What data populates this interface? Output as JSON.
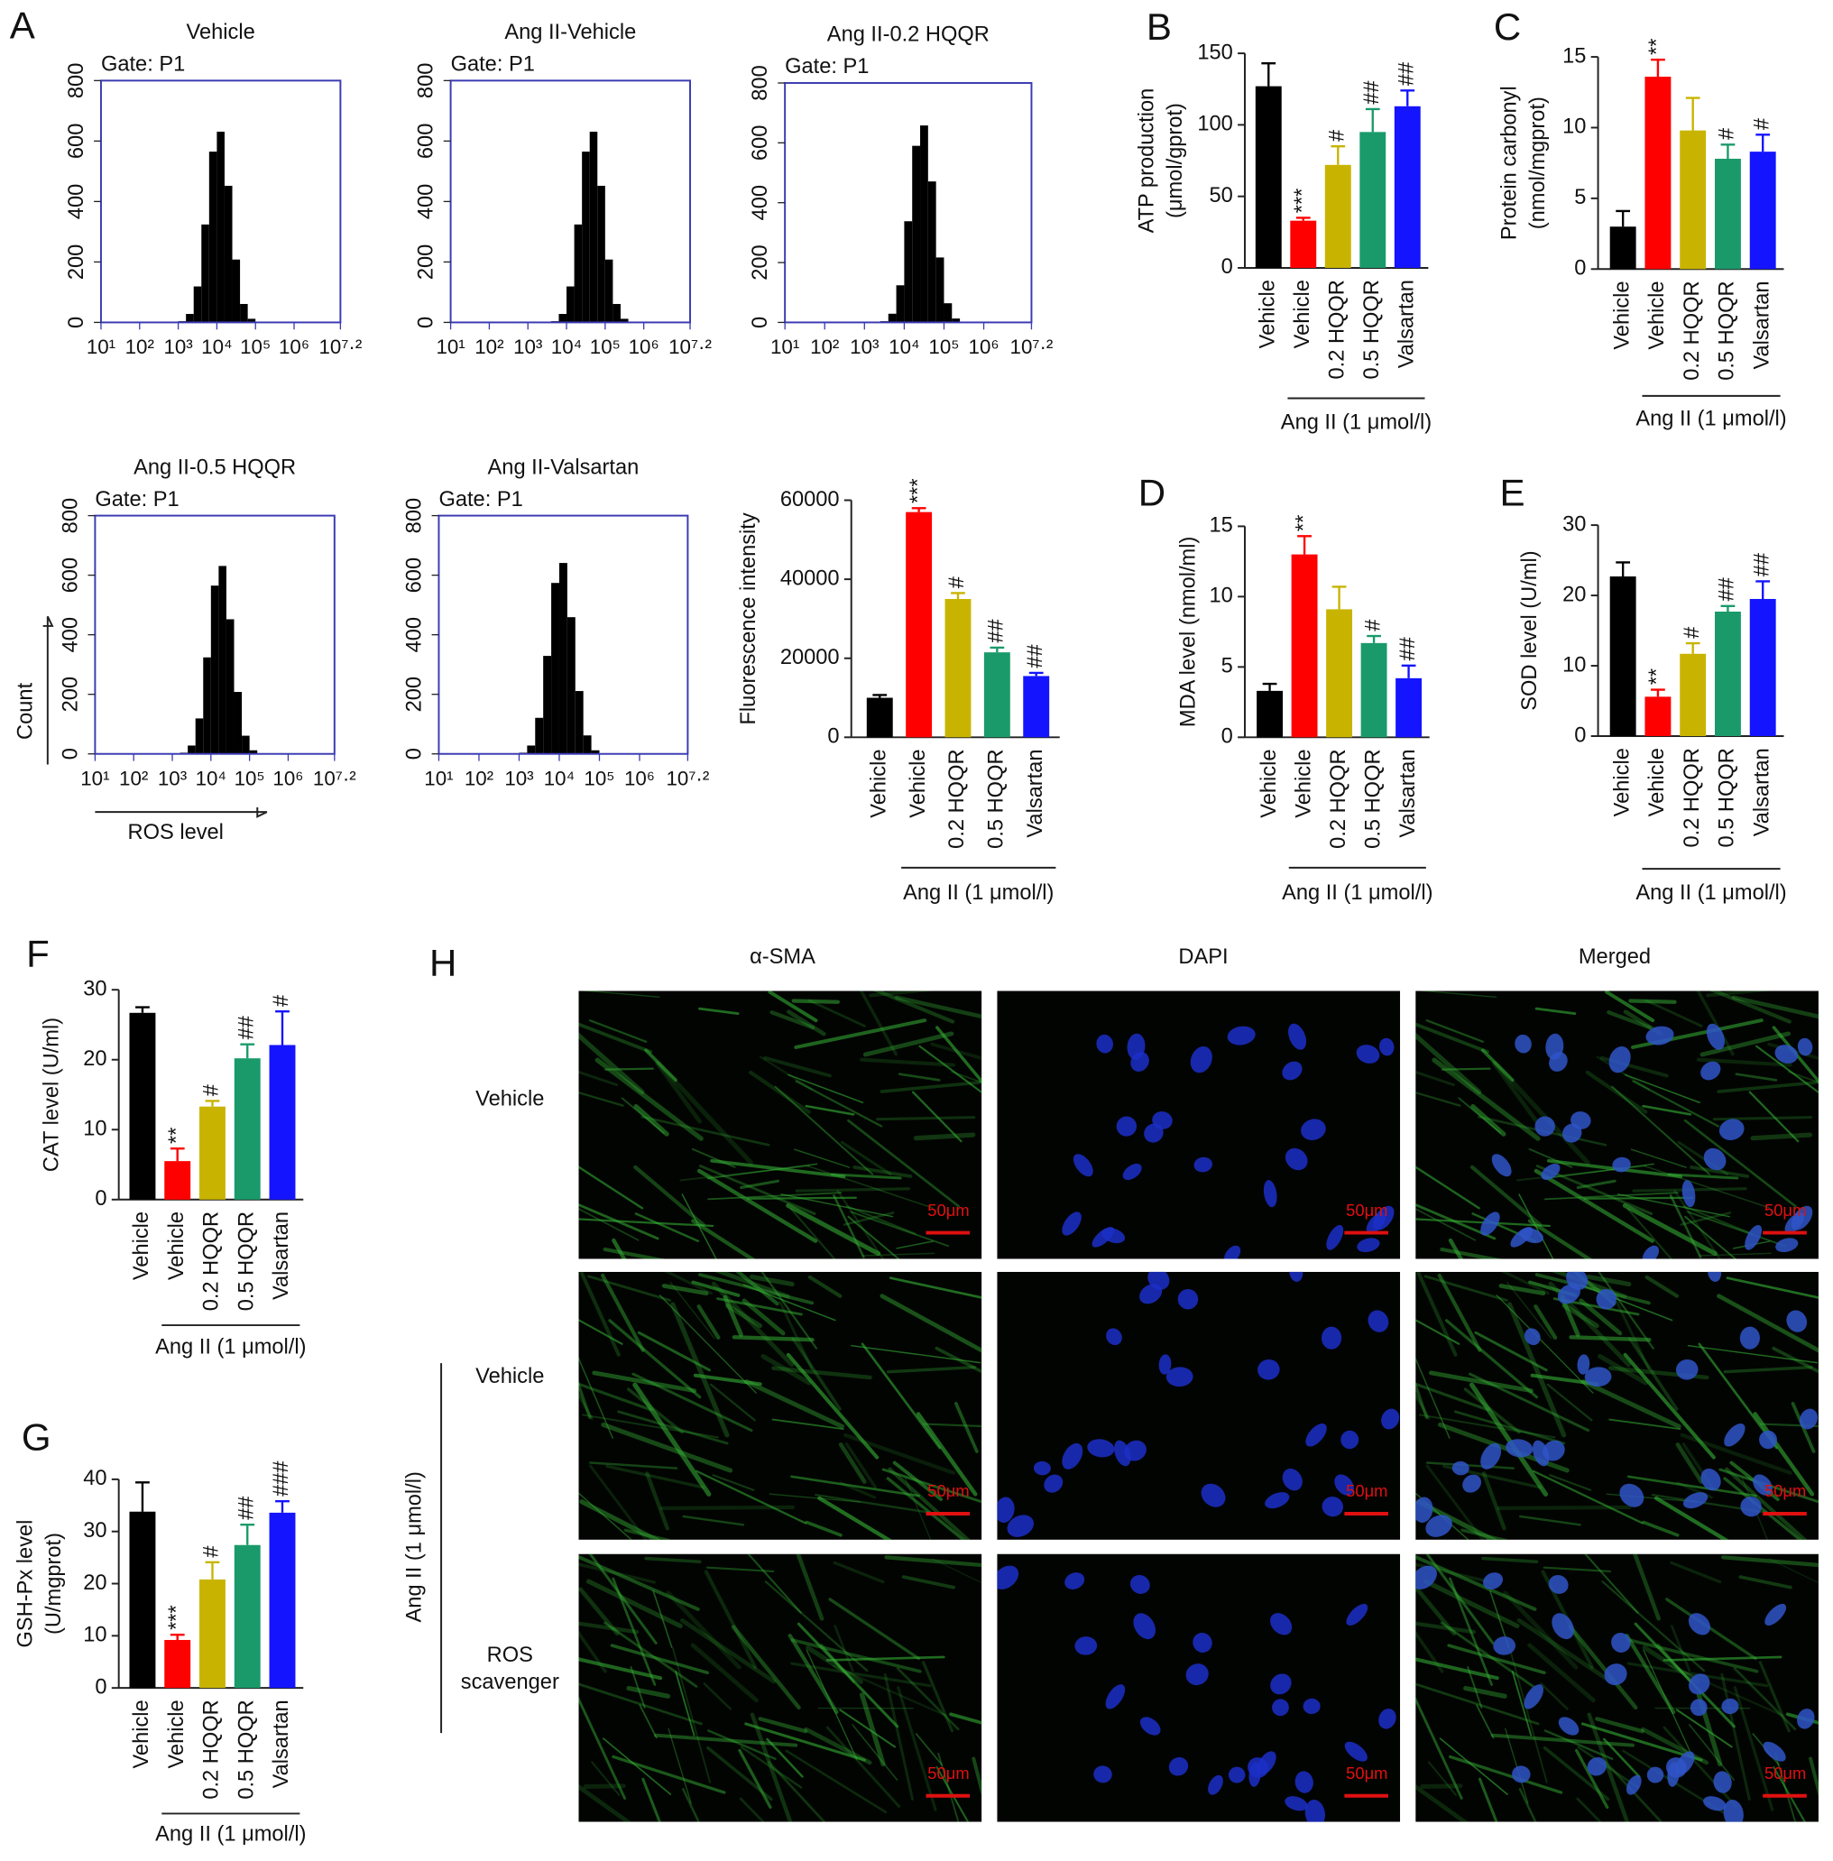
{
  "chart_data": [
    {
      "type": "histogram",
      "panel": "A",
      "title": "Vehicle",
      "gate": "Gate: P1",
      "color": "#000000",
      "frame_color": "#3b3bb3",
      "xscale": "log",
      "bins": [
        251,
        398,
        631,
        1000,
        1585,
        2512,
        3981,
        6310,
        10000,
        15849,
        25119,
        39811,
        63096,
        100000,
        158489,
        251189,
        398107,
        630957,
        1000000,
        1584893,
        2511886
      ],
      "values": [
        0,
        0,
        0,
        4,
        28,
        119,
        324,
        565,
        631,
        452,
        208,
        61,
        12,
        1,
        0,
        0,
        0,
        0,
        0,
        0
      ],
      "xlim": [
        10,
        15848932
      ],
      "xticks": [
        {
          "value": 10,
          "label": "10¹"
        },
        {
          "value": 100,
          "label": "10²"
        },
        {
          "value": 1000,
          "label": "10³"
        },
        {
          "value": 10000,
          "label": "10⁴"
        },
        {
          "value": 100000,
          "label": "10⁵"
        },
        {
          "value": 1000000,
          "label": "10⁶"
        },
        {
          "value": 15848932,
          "label": "10⁷·²"
        }
      ],
      "ylim": [
        0,
        800
      ],
      "yticks": [
        0,
        200,
        400,
        600,
        800
      ]
    },
    {
      "type": "histogram",
      "title": "Ang II-Vehicle",
      "gate": "Gate: P1",
      "color": "#000000",
      "frame_color": "#3b3bb3",
      "xscale": "log",
      "bins": [
        251,
        398,
        631,
        1000,
        1585,
        2512,
        3981,
        6310,
        10000,
        15849,
        25119,
        39811,
        63096,
        100000,
        158489,
        251189,
        398107,
        630957,
        1000000,
        1584893,
        2511886
      ],
      "values": [
        0,
        0,
        0,
        0,
        0,
        0,
        4,
        28,
        119,
        324,
        565,
        631,
        452,
        208,
        61,
        12,
        1,
        0,
        0,
        0
      ],
      "xlim": [
        10,
        15848932
      ],
      "xticks": [
        {
          "value": 10,
          "label": "10¹"
        },
        {
          "value": 100,
          "label": "10²"
        },
        {
          "value": 1000,
          "label": "10³"
        },
        {
          "value": 10000,
          "label": "10⁴"
        },
        {
          "value": 100000,
          "label": "10⁵"
        },
        {
          "value": 1000000,
          "label": "10⁶"
        },
        {
          "value": 15848932,
          "label": "10⁷·²"
        }
      ],
      "ylim": [
        0,
        800
      ],
      "yticks": [
        0,
        200,
        400,
        600,
        800
      ]
    },
    {
      "type": "histogram",
      "title": "Ang II-0.2 HQQR",
      "gate": "Gate: P1",
      "color": "#000000",
      "frame_color": "#3b3bb3",
      "xscale": "log",
      "bins": [
        251,
        398,
        631,
        1000,
        1585,
        2512,
        3981,
        6310,
        10000,
        15849,
        25119,
        39811,
        63096,
        100000,
        158489,
        251189,
        398107,
        630957,
        1000000,
        1584893,
        2511886
      ],
      "values": [
        0,
        0,
        0,
        0,
        0,
        4,
        29,
        124,
        338,
        590,
        658,
        471,
        217,
        64,
        13,
        1,
        0,
        0,
        0,
        0
      ],
      "xlim": [
        10,
        15848932
      ],
      "xticks": [
        {
          "value": 10,
          "label": "10¹"
        },
        {
          "value": 100,
          "label": "10²"
        },
        {
          "value": 1000,
          "label": "10³"
        },
        {
          "value": 10000,
          "label": "10⁴"
        },
        {
          "value": 100000,
          "label": "10⁵"
        },
        {
          "value": 1000000,
          "label": "10⁶"
        },
        {
          "value": 15848932,
          "label": "10⁷·²"
        }
      ],
      "ylim": [
        0,
        800
      ],
      "yticks": [
        0,
        200,
        400,
        600,
        800
      ]
    },
    {
      "type": "histogram",
      "title": "Ang II-0.5 HQQR",
      "gate": "Gate: P1",
      "color": "#000000",
      "frame_color": "#3b3bb3",
      "xscale": "log",
      "xlabel": "ROS level",
      "ylabel": "Count",
      "bins": [
        251,
        398,
        631,
        1000,
        1585,
        2512,
        3981,
        6310,
        10000,
        15849,
        25119,
        39811,
        63096,
        100000,
        158489,
        251189,
        398107,
        630957,
        1000000,
        1584893,
        2511886
      ],
      "values": [
        0,
        0,
        0,
        0,
        4,
        28,
        119,
        324,
        565,
        631,
        452,
        208,
        61,
        12,
        1,
        0,
        0,
        0,
        0,
        0
      ],
      "xlim": [
        10,
        15848932
      ],
      "xticks": [
        {
          "value": 10,
          "label": "10¹"
        },
        {
          "value": 100,
          "label": "10²"
        },
        {
          "value": 1000,
          "label": "10³"
        },
        {
          "value": 10000,
          "label": "10⁴"
        },
        {
          "value": 100000,
          "label": "10⁵"
        },
        {
          "value": 1000000,
          "label": "10⁶"
        },
        {
          "value": 15848932,
          "label": "10⁷·²"
        }
      ],
      "ylim": [
        0,
        800
      ],
      "yticks": [
        0,
        200,
        400,
        600,
        800
      ]
    },
    {
      "type": "histogram",
      "title": "Ang II-Valsartan",
      "gate": "Gate: P1",
      "color": "#000000",
      "frame_color": "#3b3bb3",
      "xscale": "log",
      "bins": [
        251,
        398,
        631,
        1000,
        1585,
        2512,
        3981,
        6310,
        10000,
        15849,
        25119,
        39811,
        63096,
        100000,
        158489,
        251189,
        398107,
        630957,
        1000000,
        1584893,
        2511886
      ],
      "values": [
        0,
        0,
        0,
        4,
        28,
        121,
        329,
        574,
        641,
        459,
        211,
        62,
        12,
        1,
        0,
        0,
        0,
        0,
        0,
        0
      ],
      "xlim": [
        10,
        15848932
      ],
      "xticks": [
        {
          "value": 10,
          "label": "10¹"
        },
        {
          "value": 100,
          "label": "10²"
        },
        {
          "value": 1000,
          "label": "10³"
        },
        {
          "value": 10000,
          "label": "10⁴"
        },
        {
          "value": 100000,
          "label": "10⁵"
        },
        {
          "value": 1000000,
          "label": "10⁶"
        },
        {
          "value": 15848932,
          "label": "10⁷·²"
        }
      ],
      "ylim": [
        0,
        800
      ],
      "yticks": [
        0,
        200,
        400,
        600,
        800
      ]
    },
    {
      "type": "bar",
      "ylabel": "Fluorescence intensity",
      "group_label": "Ang II (1 μmol/l)",
      "categories": [
        "Vehicle",
        "Vehicle",
        "0.2 HQQR",
        "0.5 HQQR",
        "Valsartan"
      ],
      "colors": [
        "#000000",
        "#ff0000",
        "#c8b400",
        "#1a9a6a",
        "#1414ff"
      ],
      "values": [
        10000,
        57000,
        35000,
        21500,
        15500
      ],
      "errors": [
        700,
        1000,
        1500,
        1200,
        800
      ],
      "annotations": [
        null,
        "***",
        "#",
        "##",
        "##"
      ],
      "ylim": [
        0,
        60000
      ],
      "yticks": [
        0,
        20000,
        40000,
        60000
      ]
    },
    {
      "type": "bar",
      "panel": "B",
      "ylabel": [
        "ATP production",
        "(μmol/gprot)"
      ],
      "group_label": "Ang II (1 μmol/l)",
      "categories": [
        "Vehicle",
        "Vehicle",
        "0.2 HQQR",
        "0.5 HQQR",
        "Valsartan"
      ],
      "colors": [
        "#000000",
        "#ff0000",
        "#c8b400",
        "#1a9a6a",
        "#1414ff"
      ],
      "values": [
        127,
        33,
        72,
        95,
        113
      ],
      "errors": [
        16,
        2,
        13,
        16,
        11
      ],
      "annotations": [
        null,
        "***",
        "#",
        "##",
        "##"
      ],
      "ylim": [
        0,
        150
      ],
      "yticks": [
        0,
        50,
        100,
        150
      ]
    },
    {
      "type": "bar",
      "panel": "C",
      "ylabel": [
        "Protein carbonyl",
        "(nmol/mgprot)"
      ],
      "group_label": "Ang II (1 μmol/l)",
      "categories": [
        "Vehicle",
        "Vehicle",
        "0.2 HQQR",
        "0.5 HQQR",
        "Valsartan"
      ],
      "colors": [
        "#000000",
        "#ff0000",
        "#c8b400",
        "#1a9a6a",
        "#1414ff"
      ],
      "values": [
        3,
        13.6,
        9.8,
        7.8,
        8.3
      ],
      "errors": [
        1.1,
        1.2,
        2.3,
        1.0,
        1.2
      ],
      "annotations": [
        null,
        "**",
        null,
        "#",
        "#"
      ],
      "ylim": [
        0,
        15
      ],
      "yticks": [
        0,
        5,
        10,
        15
      ]
    },
    {
      "type": "bar",
      "panel": "D",
      "ylabel": "MDA level (nmol/ml)",
      "group_label": "Ang II (1 μmol/l)",
      "categories": [
        "Vehicle",
        "Vehicle",
        "0.2 HQQR",
        "0.5 HQQR",
        "Valsartan"
      ],
      "colors": [
        "#000000",
        "#ff0000",
        "#c8b400",
        "#1a9a6a",
        "#1414ff"
      ],
      "values": [
        3.3,
        13,
        9.1,
        6.7,
        4.2
      ],
      "errors": [
        0.5,
        1.3,
        1.6,
        0.5,
        0.9
      ],
      "annotations": [
        null,
        "**",
        null,
        "#",
        "##"
      ],
      "ylim": [
        0,
        15
      ],
      "yticks": [
        0,
        5,
        10,
        15
      ]
    },
    {
      "type": "bar",
      "panel": "E",
      "ylabel": "SOD level (U/ml)",
      "group_label": "Ang II (1 μmol/l)",
      "categories": [
        "Vehicle",
        "Vehicle",
        "0.2 HQQR",
        "0.5 HQQR",
        "Valsartan"
      ],
      "colors": [
        "#000000",
        "#ff0000",
        "#c8b400",
        "#1a9a6a",
        "#1414ff"
      ],
      "values": [
        22.7,
        5.6,
        11.7,
        17.7,
        19.5
      ],
      "errors": [
        2,
        1,
        1.5,
        0.8,
        2.5
      ],
      "annotations": [
        null,
        "**",
        "#",
        "##",
        "##"
      ],
      "ylim": [
        0,
        30
      ],
      "yticks": [
        0,
        10,
        20,
        30
      ]
    },
    {
      "type": "bar",
      "panel": "F",
      "ylabel": "CAT level (U/ml)",
      "group_label": "Ang II (1 μmol/l)",
      "categories": [
        "Vehicle",
        "Vehicle",
        "0.2 HQQR",
        "0.5 HQQR",
        "Valsartan"
      ],
      "colors": [
        "#000000",
        "#ff0000",
        "#c8b400",
        "#1a9a6a",
        "#1414ff"
      ],
      "values": [
        26.7,
        5.5,
        13.3,
        20.2,
        22.1
      ],
      "errors": [
        0.8,
        1.8,
        0.8,
        2.0,
        4.8
      ],
      "annotations": [
        null,
        "**",
        "#",
        "##",
        "#"
      ],
      "ylim": [
        0,
        30
      ],
      "yticks": [
        0,
        10,
        20,
        30
      ]
    },
    {
      "type": "bar",
      "panel": "G",
      "ylabel": [
        "GSH-Px level",
        "(U/mgprot)"
      ],
      "group_label": "Ang II (1 μmol/l)",
      "categories": [
        "Vehicle",
        "Vehicle",
        "0.2 HQQR",
        "0.5 HQQR",
        "Valsartan"
      ],
      "colors": [
        "#000000",
        "#ff0000",
        "#c8b400",
        "#1a9a6a",
        "#1414ff"
      ],
      "values": [
        33.8,
        9.2,
        20.8,
        27.4,
        33.6
      ],
      "errors": [
        5.6,
        1,
        3.3,
        3.9,
        2.2
      ],
      "annotations": [
        null,
        "***",
        "#",
        "##",
        "###"
      ],
      "ylim": [
        0,
        40
      ],
      "yticks": [
        0,
        10,
        20,
        30,
        40
      ]
    }
  ],
  "panel_h": {
    "label": "H",
    "columns": [
      "α-SMA",
      "DAPI",
      "Merged"
    ],
    "rows": [
      [
        "Vehicle"
      ],
      [
        "Vehicle"
      ],
      [
        "ROS",
        "scavenger"
      ]
    ],
    "group_label": "Ang II (1 μmol/l)",
    "scale_bar": "50μm"
  }
}
